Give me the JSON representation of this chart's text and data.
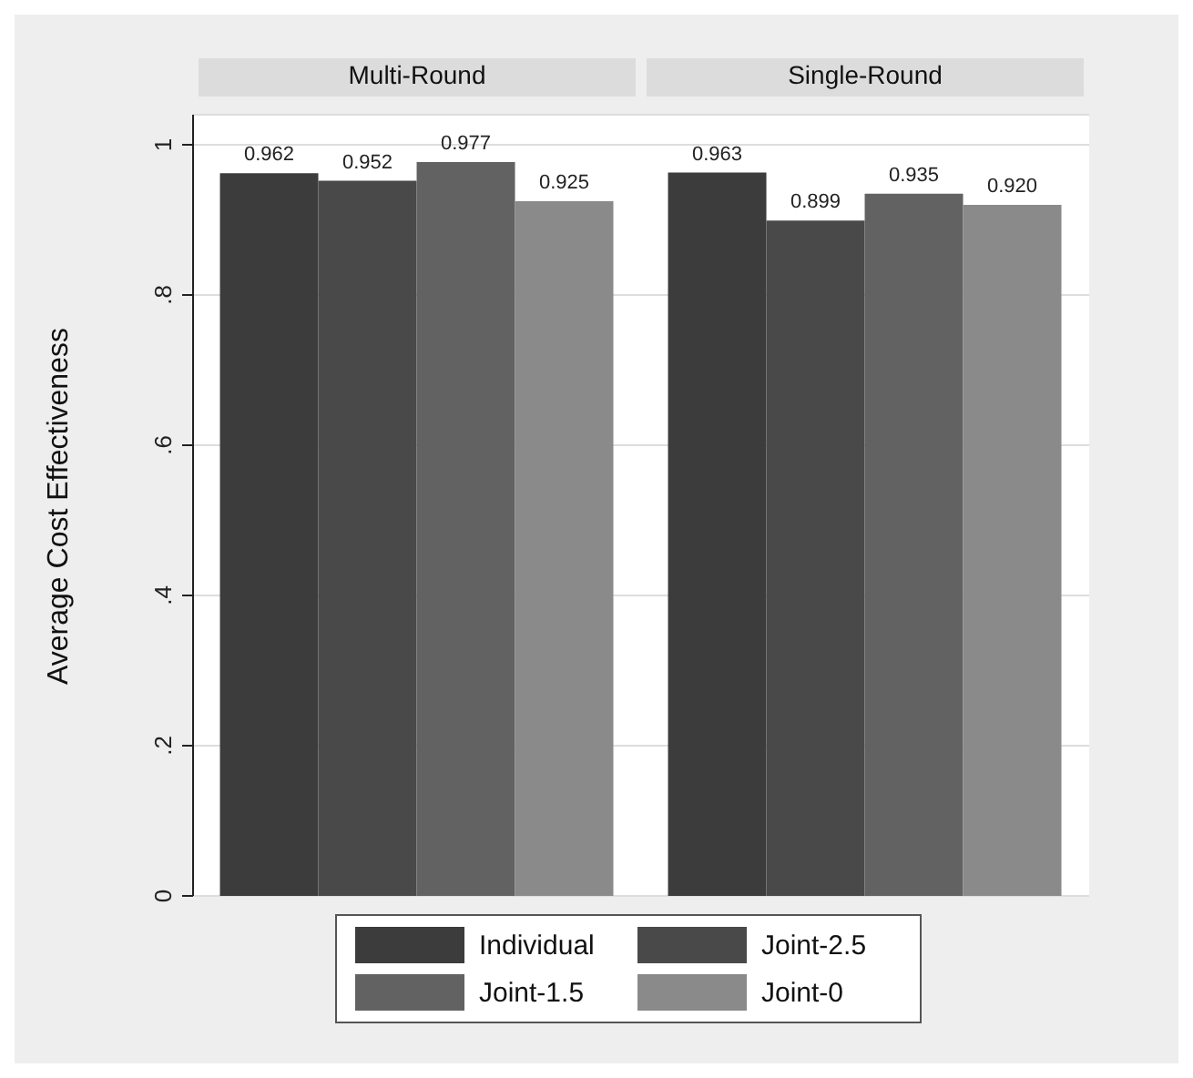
{
  "chart_data": {
    "type": "bar",
    "ylabel": "Average Cost Effectiveness",
    "categories": [
      "Multi-Round",
      "Single-Round"
    ],
    "ylim": [
      0,
      1.04
    ],
    "yticks": [
      0,
      {
        "value": 0.2,
        "label": ".2"
      },
      {
        "value": 0.4,
        "label": ".4"
      },
      {
        "value": 0.6,
        "label": ".6"
      },
      {
        "value": 0.8,
        "label": ".8"
      },
      1
    ],
    "grid": "y",
    "legend": "bottom",
    "series": [
      {
        "name": "Individual",
        "color": "#3c3c3c",
        "values": [
          0.962,
          0.963
        ],
        "value_labels": [
          "0.962",
          "0.963"
        ]
      },
      {
        "name": "Joint-2.5",
        "color": "#494949",
        "values": [
          0.952,
          0.899
        ],
        "value_labels": [
          "0.952",
          "0.899"
        ]
      },
      {
        "name": "Joint-1.5",
        "color": "#626262",
        "values": [
          0.977,
          0.935
        ],
        "value_labels": [
          "0.977",
          "0.935"
        ]
      },
      {
        "name": "Joint-0",
        "color": "#8a8a8a",
        "values": [
          0.925,
          0.92
        ],
        "value_labels": [
          "0.925",
          "0.920"
        ]
      }
    ]
  }
}
